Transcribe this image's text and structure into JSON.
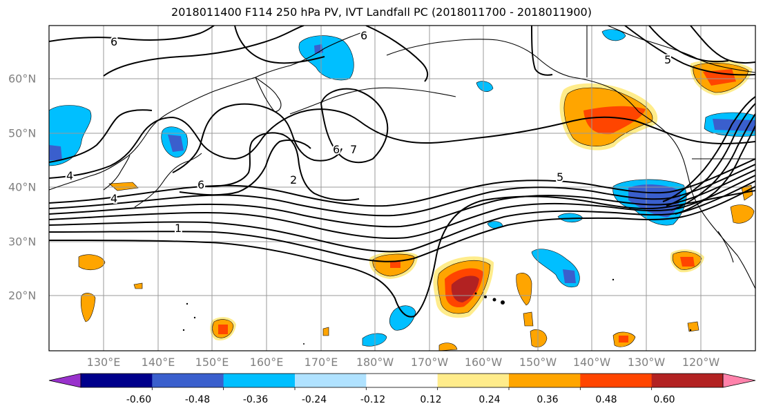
{
  "title": "2018011400 F114 250 hPa PV, IVT Landfall PC (2018011700 - 2018011900)",
  "lon_labels": [
    "130°E",
    "140°E",
    "150°E",
    "160°E",
    "170°E",
    "180°W",
    "170°W",
    "160°W",
    "150°W",
    "140°W",
    "130°W",
    "120°W"
  ],
  "lat_labels": [
    "60°N",
    "50°N",
    "40°N",
    "30°N",
    "20°N"
  ],
  "colorbar": {
    "ticks": [
      "-0.60",
      "-0.48",
      "-0.36",
      "-0.24",
      "-0.12",
      "0.12",
      "0.24",
      "0.36",
      "0.48",
      "0.60"
    ],
    "colors": [
      "#9932cc",
      "#00008b",
      "#3a5fcd",
      "#00bfff",
      "#b0e2ff",
      "#ffffff",
      "#ffec8b",
      "#ffa500",
      "#ff4500",
      "#b22222",
      "#ff82ab"
    ]
  },
  "contour_labels": [
    "6",
    "6",
    "5",
    "4",
    "4",
    "1",
    "6",
    "2",
    "6",
    "7",
    "5"
  ],
  "fill_colors": {
    "neg_weak": "#00bfff",
    "neg_mid": "#3a5fcd",
    "neg_light": "#b0e2ff",
    "pos_light": "#ffec8b",
    "pos_weak": "#ffa500",
    "pos_mid": "#ff4500",
    "pos_strong": "#b22222"
  }
}
